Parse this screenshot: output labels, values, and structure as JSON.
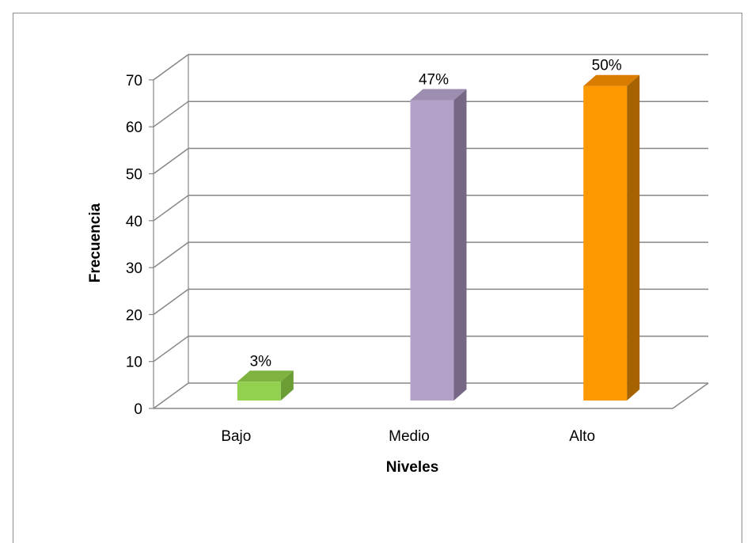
{
  "chart_data": {
    "type": "bar",
    "categories": [
      "Bajo",
      "Medio",
      "Alto"
    ],
    "values": [
      4,
      64,
      67
    ],
    "data_labels": [
      "3%",
      "47%",
      "50%"
    ],
    "xlabel": "Niveles",
    "ylabel": "Frecuencia",
    "ylim": [
      0,
      70
    ],
    "yticks": [
      0,
      10,
      20,
      30,
      40,
      50,
      60,
      70
    ],
    "grid": true,
    "three_d": true,
    "colors": {
      "front": [
        "#92d050",
        "#b3a2c7",
        "#ff9900"
      ],
      "side": [
        "#6a9e35",
        "#766784",
        "#a66300"
      ],
      "top": [
        "#7fb340",
        "#9d8db0",
        "#d97c00"
      ],
      "grid": "#868686"
    }
  }
}
